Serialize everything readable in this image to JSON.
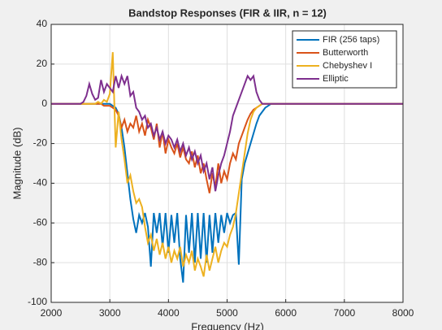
{
  "chart_data": {
    "type": "line",
    "title": "Bandstop Responses (FIR & IIR, n = 12)",
    "xlabel": "Frequency (Hz)",
    "ylabel": "Magnitude (dB)",
    "xlim": [
      2000,
      8000
    ],
    "xticks": [
      2000,
      3000,
      4000,
      5000,
      6000,
      7000,
      8000
    ],
    "ylim": [
      -100,
      40
    ],
    "yticks": [
      -100,
      -80,
      -60,
      -40,
      -20,
      0,
      20,
      40
    ],
    "grid": true,
    "legend": "northeast",
    "x": [
      2000,
      2500,
      2550,
      2600,
      2650,
      2700,
      2750,
      2800,
      2850,
      2900,
      2950,
      3000,
      3050,
      3100,
      3150,
      3200,
      3250,
      3300,
      3350,
      3400,
      3450,
      3500,
      3550,
      3600,
      3650,
      3700,
      3750,
      3800,
      3850,
      3900,
      3950,
      4000,
      4050,
      4100,
      4150,
      4200,
      4250,
      4300,
      4350,
      4400,
      4450,
      4500,
      4550,
      4600,
      4650,
      4700,
      4750,
      4800,
      4850,
      4900,
      4950,
      5000,
      5050,
      5100,
      5150,
      5200,
      5250,
      5300,
      5350,
      5400,
      5450,
      5500,
      5550,
      5600,
      5650,
      5700,
      5750,
      5800,
      5850,
      5900,
      5950,
      6000,
      6500,
      7000,
      7500,
      8000
    ],
    "series": [
      {
        "name": "FIR (256 taps)",
        "color": "#0072bd",
        "values": [
          0,
          0,
          0,
          0,
          0,
          0,
          0,
          0,
          0,
          0,
          0,
          0,
          -1,
          -2,
          -5,
          -12,
          -22,
          -35,
          -48,
          -58,
          -65,
          -56,
          -60,
          -55,
          -62,
          -82,
          -55,
          -65,
          -55,
          -72,
          -55,
          -75,
          -56,
          -70,
          -55,
          -78,
          -90,
          -56,
          -75,
          -55,
          -80,
          -55,
          -78,
          -55,
          -80,
          -56,
          -75,
          -55,
          -70,
          -56,
          -65,
          -55,
          -60,
          -56,
          -55,
          -81,
          -38,
          -30,
          -25,
          -20,
          -15,
          -10,
          -6,
          -4,
          -2,
          -1,
          0,
          0,
          0,
          0,
          0,
          0,
          0,
          0,
          0,
          0
        ]
      },
      {
        "name": "Butterworth",
        "color": "#d95319",
        "values": [
          0,
          0,
          0,
          0,
          0,
          0,
          0,
          0,
          0,
          -1,
          -1,
          -1,
          -2,
          -3,
          -6,
          -12,
          -8,
          -14,
          -10,
          -12,
          -6,
          -14,
          -10,
          -16,
          -8,
          -12,
          -18,
          -10,
          -22,
          -14,
          -25,
          -18,
          -22,
          -25,
          -20,
          -27,
          -22,
          -28,
          -30,
          -24,
          -32,
          -26,
          -35,
          -30,
          -38,
          -45,
          -35,
          -42,
          -30,
          -40,
          -34,
          -38,
          -30,
          -25,
          -28,
          -20,
          -16,
          -12,
          -8,
          -5,
          -3,
          -2,
          -1,
          0,
          0,
          0,
          0,
          0,
          0,
          0,
          0,
          0,
          0,
          0,
          0,
          0
        ]
      },
      {
        "name": "Chebyshev I",
        "color": "#edb120",
        "values": [
          0,
          0,
          0,
          0,
          0,
          0,
          0,
          1,
          0,
          2,
          1,
          5,
          26,
          -22,
          -4,
          -18,
          -28,
          -40,
          -36,
          -44,
          -50,
          -48,
          -52,
          -62,
          -70,
          -66,
          -74,
          -68,
          -76,
          -70,
          -78,
          -72,
          -80,
          -74,
          -78,
          -72,
          -82,
          -76,
          -80,
          -74,
          -84,
          -78,
          -82,
          -87,
          -76,
          -84,
          -78,
          -72,
          -80,
          -74,
          -70,
          -72,
          -66,
          -62,
          -55,
          -45,
          -35,
          -25,
          -15,
          -8,
          -4,
          -2,
          -1,
          0,
          0,
          0,
          0,
          0,
          0,
          0,
          0,
          0,
          0,
          0,
          0,
          0
        ]
      },
      {
        "name": "Elliptic",
        "color": "#7e2f8e",
        "values": [
          0,
          0,
          1,
          4,
          10,
          5,
          2,
          3,
          12,
          6,
          10,
          8,
          6,
          14,
          8,
          14,
          10,
          14,
          4,
          6,
          -2,
          -4,
          -8,
          -6,
          -12,
          -10,
          -16,
          -12,
          -18,
          -14,
          -20,
          -16,
          -18,
          -22,
          -18,
          -24,
          -20,
          -26,
          -22,
          -28,
          -24,
          -30,
          -26,
          -34,
          -30,
          -38,
          -32,
          -44,
          -36,
          -30,
          -26,
          -20,
          -14,
          -6,
          -2,
          2,
          6,
          10,
          14,
          12,
          14,
          6,
          2,
          0,
          0,
          0,
          0,
          0,
          0,
          0,
          0,
          0,
          0,
          0,
          0,
          0
        ]
      }
    ]
  }
}
